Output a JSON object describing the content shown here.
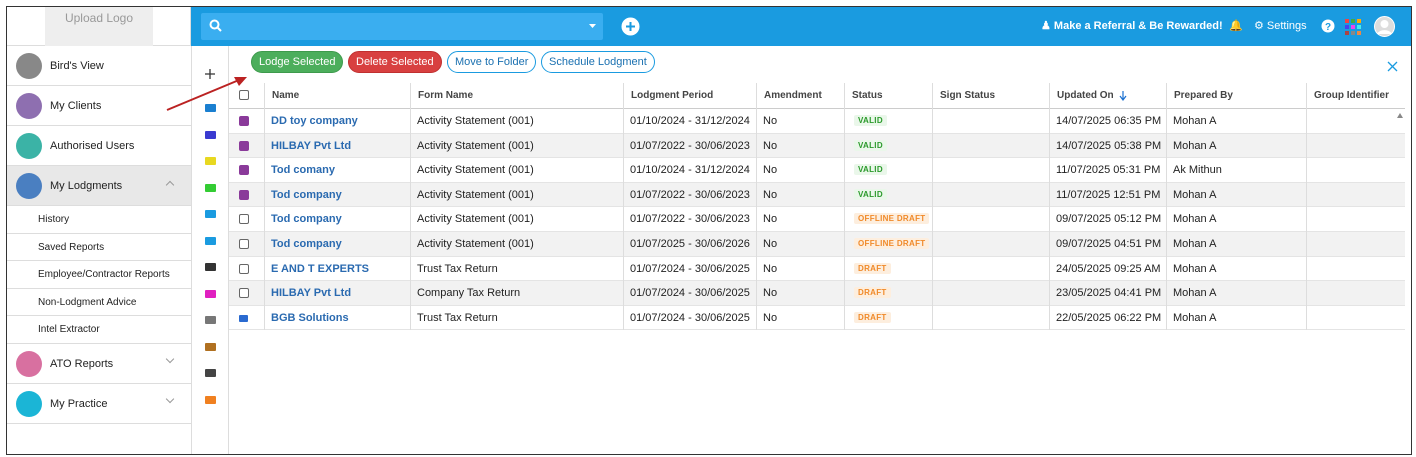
{
  "header": {
    "upload_logo": "Upload Logo",
    "referral": "Make a Referral & Be Rewarded!",
    "settings": "Settings"
  },
  "sidebar": {
    "items": [
      {
        "label": "Bird's View",
        "color": "#888888"
      },
      {
        "label": "My Clients",
        "color": "#8e6fb0"
      },
      {
        "label": "Authorised Users",
        "color": "#3bb3a6"
      },
      {
        "label": "My Lodgments",
        "color": "#4a7fc1",
        "active": true,
        "expanded": true,
        "children": [
          "History",
          "Saved Reports",
          "Employee/Contractor Reports",
          "Non-Lodgment Advice",
          "Intel Extractor"
        ]
      },
      {
        "label": "ATO Reports",
        "color": "#d870a0"
      },
      {
        "label": "My Practice",
        "color": "#1bb5d6"
      }
    ]
  },
  "toolbar": {
    "buttons": [
      {
        "label": "Lodge Selected",
        "style": "green"
      },
      {
        "label": "Delete Selected",
        "style": "red"
      },
      {
        "label": "Move to Folder",
        "style": "outline"
      },
      {
        "label": "Schedule Lodgment",
        "style": "outline"
      }
    ]
  },
  "table": {
    "columns": [
      "Name",
      "Form Name",
      "Lodgment Period",
      "Amendment",
      "Status",
      "Sign Status",
      "Updated On",
      "Prepared By",
      "Group Identifier"
    ],
    "rows": [
      {
        "checked": true,
        "cells": [
          "DD toy company",
          "Activity Statement (001)",
          "01/10/2024 - 31/12/2024",
          "No",
          "VALID",
          "14/07/2025 06:35 PM",
          "Mohan A"
        ]
      },
      {
        "checked": true,
        "cells": [
          "HILBAY Pvt Ltd",
          "Activity Statement (001)",
          "01/07/2022 - 30/06/2023",
          "No",
          "VALID",
          "14/07/2025 05:38 PM",
          "Mohan A"
        ]
      },
      {
        "checked": true,
        "cells": [
          "Tod comany",
          "Activity Statement (001)",
          "01/10/2024 - 31/12/2024",
          "No",
          "VALID",
          "11/07/2025 05:31 PM",
          "Ak Mithun"
        ]
      },
      {
        "checked": true,
        "cells": [
          "Tod company",
          "Activity Statement (001)",
          "01/07/2022 - 30/06/2023",
          "No",
          "VALID",
          "11/07/2025 12:51 PM",
          "Mohan A"
        ]
      },
      {
        "checked": false,
        "cells": [
          "Tod company",
          "Activity Statement (001)",
          "01/07/2022 - 30/06/2023",
          "No",
          "OFFLINE DRAFT",
          "09/07/2025 05:12 PM",
          "Mohan A"
        ]
      },
      {
        "checked": false,
        "cells": [
          "Tod company",
          "Activity Statement (001)",
          "01/07/2025 - 30/06/2026",
          "No",
          "OFFLINE DRAFT",
          "09/07/2025 04:51 PM",
          "Mohan A"
        ]
      },
      {
        "checked": false,
        "cells": [
          "E AND T EXPERTS",
          "Trust Tax Return",
          "01/07/2024 - 30/06/2025",
          "No",
          "DRAFT",
          "24/05/2025 09:25 AM",
          "Mohan A"
        ]
      },
      {
        "checked": false,
        "cells": [
          "HILBAY Pvt Ltd",
          "Company Tax Return",
          "01/07/2024 - 30/06/2025",
          "No",
          "DRAFT",
          "23/05/2025 04:41 PM",
          "Mohan A"
        ]
      },
      {
        "locked": true,
        "cells": [
          "BGB Solutions",
          "Trust Tax Return",
          "01/07/2024 - 30/06/2025",
          "No",
          "DRAFT",
          "22/05/2025 06:22 PM",
          "Mohan A"
        ]
      }
    ]
  }
}
